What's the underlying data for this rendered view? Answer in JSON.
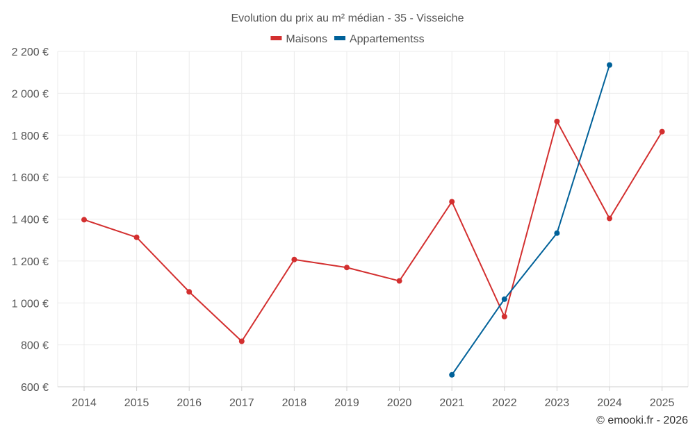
{
  "chart_data": {
    "type": "line",
    "title": "Evolution du prix au m² médian - 35 - Visseiche",
    "credit": "© emooki.fr - 2026",
    "xlabel": "",
    "ylabel": "",
    "categories": [
      "2014",
      "2015",
      "2016",
      "2017",
      "2018",
      "2019",
      "2020",
      "2021",
      "2022",
      "2023",
      "2024",
      "2025"
    ],
    "ylim": [
      600,
      2200
    ],
    "yticks": [
      600,
      800,
      1000,
      1200,
      1400,
      1600,
      1800,
      2000,
      2200
    ],
    "ytick_labels": [
      "600 €",
      "800 €",
      "1 000 €",
      "1 200 €",
      "1 400 €",
      "1 600 €",
      "1 800 €",
      "2 000 €",
      "2 200 €"
    ],
    "grid": true,
    "legend_position": "top-center",
    "series": [
      {
        "name": "Maisons",
        "color": "#d32f2f",
        "values": [
          1397,
          1313,
          1053,
          817,
          1207,
          1169,
          1105,
          1483,
          935,
          1866,
          1403,
          1817
        ]
      },
      {
        "name": "Appartementss",
        "color": "#006199",
        "values": [
          null,
          null,
          null,
          null,
          null,
          null,
          null,
          657,
          1018,
          1333,
          2135,
          null
        ]
      }
    ]
  }
}
